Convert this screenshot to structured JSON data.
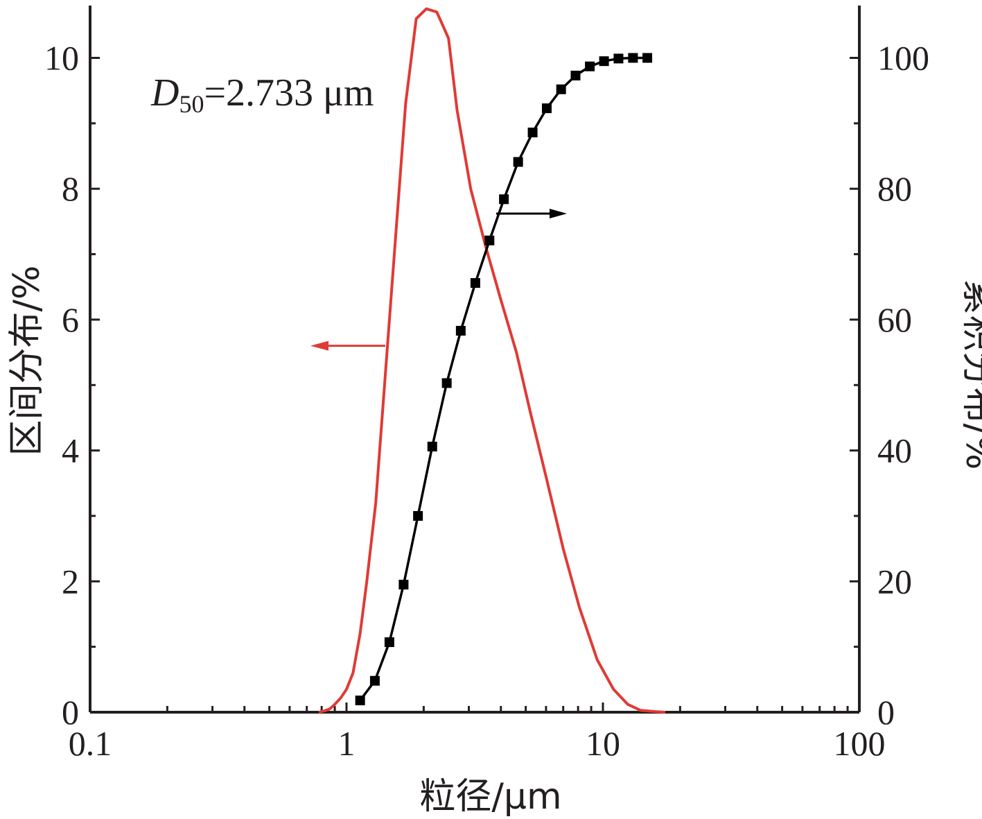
{
  "chart_data": {
    "type": "line",
    "x_scale": "log",
    "xlim": [
      0.1,
      100
    ],
    "xlabel": "粒径/μm",
    "ylabel_left": "区间分布/%",
    "ylabel_right": "累积分布/%",
    "ylim_left": [
      0,
      10.8
    ],
    "ylim_right": [
      0,
      108
    ],
    "x_tick_labels": [
      "0.1",
      "1",
      "10",
      "100"
    ],
    "y_left_tick_labels": [
      "0",
      "2",
      "4",
      "6",
      "8",
      "10"
    ],
    "y_right_tick_labels": [
      "0",
      "20",
      "40",
      "60",
      "80",
      "100"
    ],
    "grid": false,
    "annotation": {
      "d_symbol": "D",
      "d_subscript": "50",
      "value_text": "=2.733 μm"
    },
    "series": [
      {
        "axis": "left",
        "color": "#e03a35",
        "marker": "none",
        "indicator_arrow": "left",
        "x": [
          0.78,
          0.82,
          0.86,
          0.9,
          0.95,
          1.0,
          1.06,
          1.13,
          1.2,
          1.3,
          1.42,
          1.55,
          1.7,
          1.87,
          2.05,
          2.25,
          2.5,
          2.7,
          3.05,
          3.5,
          4.0,
          4.6,
          5.2,
          6.0,
          7.0,
          8.1,
          9.5,
          11.0,
          12.5,
          14.0,
          16.0,
          17.5
        ],
        "y": [
          0,
          0.02,
          0.05,
          0.12,
          0.22,
          0.35,
          0.6,
          1.2,
          2.0,
          3.2,
          5.2,
          7.2,
          9.3,
          10.6,
          10.75,
          10.7,
          10.3,
          9.2,
          8.0,
          7.1,
          6.3,
          5.5,
          4.6,
          3.6,
          2.5,
          1.6,
          0.8,
          0.35,
          0.12,
          0.03,
          0.01,
          0
        ]
      },
      {
        "axis": "right",
        "color": "#000000",
        "marker": "square",
        "indicator_arrow": "right",
        "x": [
          1.13,
          1.29,
          1.47,
          1.67,
          1.9,
          2.16,
          2.46,
          2.79,
          3.18,
          3.61,
          4.11,
          4.67,
          5.32,
          6.04,
          6.87,
          7.82,
          8.89,
          10.1,
          11.5,
          13.1,
          14.9
        ],
        "y": [
          1.8,
          4.8,
          10.7,
          19.5,
          30.0,
          40.6,
          50.3,
          58.3,
          65.6,
          72.1,
          78.4,
          84.1,
          88.6,
          92.3,
          95.2,
          97.3,
          98.7,
          99.5,
          99.9,
          100.0,
          100.0
        ]
      }
    ]
  }
}
